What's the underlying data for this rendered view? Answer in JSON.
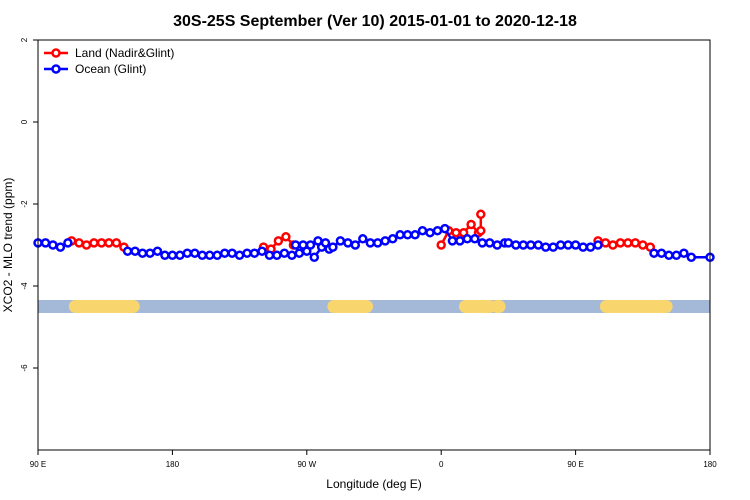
{
  "chart_data": {
    "type": "line",
    "title": "30S-25S September (Ver 10)   2015-01-01 to 2020-12-18",
    "xlabel": "Longitude (deg E)",
    "ylabel": "XCO2 - MLO trend (ppm)",
    "xlim": [
      90,
      450
    ],
    "ylim": [
      -8,
      2
    ],
    "x_ticks": [
      {
        "value": 90,
        "label": "90 E"
      },
      {
        "value": 162,
        "label": "180"
      },
      {
        "value": 234,
        "label": "90 W"
      },
      {
        "value": 306,
        "label": "0"
      },
      {
        "value": 378,
        "label": "90 E"
      },
      {
        "value": 450,
        "label": "180"
      }
    ],
    "y_ticks": [
      {
        "value": 2,
        "label": "2"
      },
      {
        "value": 0,
        "label": "0"
      },
      {
        "value": -2,
        "label": "-2"
      },
      {
        "value": -4,
        "label": "-4"
      },
      {
        "value": -6,
        "label": "-6"
      }
    ],
    "legend": {
      "position": "top-left",
      "entries": [
        {
          "name": "Land (Nadir&Glint)",
          "color": "#ff0000"
        },
        {
          "name": "Ocean (Glint)",
          "color": "#0000ff"
        }
      ]
    },
    "series": [
      {
        "name": "Land (Nadir&Glint)",
        "color": "#ff0000",
        "segments": [
          [
            [
              108,
              -2.9
            ],
            [
              112,
              -2.95
            ],
            [
              116,
              -3.0
            ],
            [
              120,
              -2.95
            ],
            [
              124,
              -2.95
            ],
            [
              128,
              -2.95
            ],
            [
              132,
              -2.95
            ],
            [
              136,
              -3.05
            ]
          ],
          [
            [
              210.8,
              -3.05
            ],
            [
              214.8,
              -3.1
            ],
            [
              218.8,
              -2.9
            ],
            [
              222.8,
              -2.8
            ],
            [
              226.8,
              -3.0
            ]
          ],
          [
            [
              306,
              -3.0
            ],
            [
              310,
              -2.65
            ],
            [
              314,
              -2.7
            ],
            [
              318,
              -2.7
            ],
            [
              322,
              -2.5
            ],
            [
              326,
              -2.7
            ]
          ],
          [
            [
              327.2,
              -2.25
            ],
            [
              327.2,
              -2.65
            ]
          ],
          [
            [
              390,
              -2.9
            ],
            [
              394,
              -2.95
            ],
            [
              398,
              -3.0
            ],
            [
              402,
              -2.95
            ],
            [
              406,
              -2.95
            ],
            [
              410,
              -2.95
            ],
            [
              414,
              -3.0
            ],
            [
              418,
              -3.05
            ]
          ]
        ]
      },
      {
        "name": "Ocean (Glint)",
        "color": "#0000ff",
        "segments": [
          [
            [
              90,
              -2.95
            ],
            [
              94,
              -2.95
            ],
            [
              98,
              -3.0
            ],
            [
              102,
              -3.05
            ],
            [
              106,
              -2.95
            ]
          ],
          [
            [
              138,
              -3.15
            ],
            [
              142,
              -3.15
            ],
            [
              146,
              -3.2
            ],
            [
              150,
              -3.2
            ],
            [
              154,
              -3.15
            ],
            [
              158,
              -3.25
            ],
            [
              162,
              -3.25
            ],
            [
              166,
              -3.25
            ],
            [
              170,
              -3.2
            ],
            [
              174,
              -3.2
            ],
            [
              178,
              -3.25
            ],
            [
              182,
              -3.25
            ],
            [
              186,
              -3.25
            ],
            [
              190,
              -3.2
            ],
            [
              194,
              -3.2
            ],
            [
              198,
              -3.25
            ],
            [
              202,
              -3.2
            ],
            [
              206,
              -3.2
            ],
            [
              210,
              -3.15
            ],
            [
              214,
              -3.25
            ],
            [
              218,
              -3.25
            ],
            [
              222,
              -3.2
            ],
            [
              226,
              -3.25
            ],
            [
              230,
              -3.2
            ],
            [
              234,
              -3.15
            ],
            [
              238,
              -3.3
            ],
            [
              242,
              -3.05
            ],
            [
              246,
              -3.1
            ]
          ],
          [
            [
              228,
              -3.0
            ],
            [
              232,
              -3.0
            ],
            [
              236,
              -3.0
            ],
            [
              240,
              -2.9
            ],
            [
              244,
              -2.95
            ],
            [
              248,
              -3.05
            ],
            [
              252,
              -2.9
            ],
            [
              256,
              -2.95
            ],
            [
              260,
              -3.0
            ],
            [
              264,
              -2.85
            ],
            [
              268,
              -2.95
            ],
            [
              272,
              -2.95
            ],
            [
              276,
              -2.9
            ],
            [
              280,
              -2.85
            ],
            [
              284,
              -2.75
            ],
            [
              288,
              -2.75
            ],
            [
              292,
              -2.75
            ],
            [
              296,
              -2.65
            ],
            [
              300,
              -2.7
            ],
            [
              304,
              -2.65
            ],
            [
              308,
              -2.6
            ],
            [
              312,
              -2.9
            ],
            [
              316,
              -2.9
            ],
            [
              320,
              -2.85
            ],
            [
              324,
              -2.85
            ],
            [
              328,
              -2.95
            ],
            [
              332,
              -2.95
            ],
            [
              336,
              -3.0
            ],
            [
              340,
              -2.95
            ]
          ],
          [
            [
              342,
              -2.95
            ],
            [
              346,
              -3.0
            ],
            [
              350,
              -3.0
            ],
            [
              354,
              -3.0
            ],
            [
              358,
              -3.0
            ],
            [
              362,
              -3.05
            ],
            [
              366,
              -3.05
            ],
            [
              370,
              -3.0
            ],
            [
              374,
              -3.0
            ],
            [
              378,
              -3.0
            ],
            [
              382,
              -3.05
            ],
            [
              386,
              -3.05
            ],
            [
              390,
              -3.0
            ]
          ],
          [
            [
              420,
              -3.2
            ],
            [
              424,
              -3.2
            ],
            [
              428,
              -3.25
            ],
            [
              432,
              -3.25
            ],
            [
              436,
              -3.2
            ],
            [
              440,
              -3.3
            ],
            [
              450,
              -3.3
            ]
          ]
        ]
      }
    ],
    "surface_strip": {
      "y": -4.5,
      "ocean_color": "#a4b9d8",
      "land_color": "#f9d56e",
      "land_ranges": [
        [
          110,
          141
        ],
        [
          248.5,
          266
        ],
        [
          319,
          332
        ],
        [
          336,
          337
        ],
        [
          394.5,
          426.5
        ]
      ]
    }
  }
}
